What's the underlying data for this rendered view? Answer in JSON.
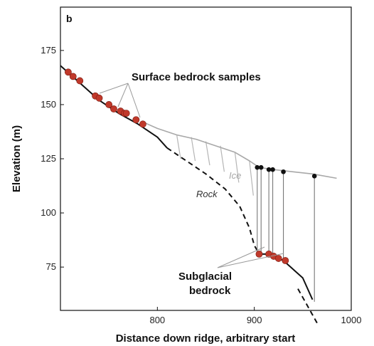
{
  "chart_data": {
    "type": "line",
    "panel_label": "b",
    "xlabel": "Distance down ridge, arbitrary start",
    "ylabel": "Elevation (m)",
    "xlim": [
      700,
      1000
    ],
    "ylim": [
      55,
      195
    ],
    "xticks": [
      800,
      900,
      1000
    ],
    "yticks": [
      75,
      100,
      125,
      150,
      175
    ],
    "grid": false,
    "series": [
      {
        "name": "Rock",
        "role": "rock-surface-exposed",
        "style": "solid",
        "color": "#111111",
        "x": [
          700,
          720,
          740,
          760,
          780,
          800,
          810
        ],
        "y": [
          168,
          160,
          152,
          146,
          141,
          135,
          130
        ]
      },
      {
        "name": "Rock",
        "role": "rock-surface-buried",
        "style": "dashed",
        "color": "#111111",
        "x": [
          810,
          830,
          850,
          870,
          885,
          895,
          900,
          905
        ],
        "y": [
          130,
          124,
          118,
          111,
          103,
          93,
          85,
          81
        ]
      },
      {
        "name": "Rock",
        "role": "rock-surface-subglacial",
        "style": "solid",
        "color": "#111111",
        "x": [
          905,
          915,
          930,
          950,
          960
        ],
        "y": [
          81,
          81,
          78,
          70,
          60
        ]
      },
      {
        "name": "Rock",
        "role": "rock-surface-extrapolated",
        "style": "dashed",
        "color": "#111111",
        "x": [
          945,
          955,
          965
        ],
        "y": [
          65,
          57,
          49
        ]
      },
      {
        "name": "Ice",
        "role": "ice-surface",
        "style": "solid",
        "color": "#a8a8a8",
        "x": [
          785,
          800,
          820,
          840,
          860,
          880,
          895,
          905,
          920,
          940,
          960,
          985
        ],
        "y": [
          142,
          139,
          136,
          134,
          131,
          128,
          124,
          121,
          120,
          119,
          118,
          116
        ]
      }
    ],
    "crevasse_lines": [
      {
        "x": 820,
        "y_top": 136,
        "y_bottom": 125
      },
      {
        "x": 835,
        "y_top": 135,
        "y_bottom": 124
      },
      {
        "x": 850,
        "y_top": 133,
        "y_bottom": 122
      },
      {
        "x": 865,
        "y_top": 131,
        "y_bottom": 119
      },
      {
        "x": 880,
        "y_top": 128,
        "y_bottom": 114
      },
      {
        "x": 895,
        "y_top": 124,
        "y_bottom": 108
      }
    ],
    "boreholes": [
      {
        "x": 903,
        "y_top": 121,
        "y_bottom": 82
      },
      {
        "x": 907,
        "y_top": 121,
        "y_bottom": 82
      },
      {
        "x": 915,
        "y_top": 120,
        "y_bottom": 82
      },
      {
        "x": 919,
        "y_top": 120,
        "y_bottom": 80
      },
      {
        "x": 930,
        "y_top": 119,
        "y_bottom": 78
      },
      {
        "x": 962,
        "y_top": 117,
        "y_bottom": 59
      }
    ],
    "surface_samples": {
      "name": "Surface bedrock samples",
      "color": "#c0392b",
      "x": [
        708,
        713,
        720,
        736,
        740,
        750,
        755,
        762,
        766,
        768,
        778,
        785
      ],
      "y": [
        165,
        163,
        161,
        154,
        153,
        150,
        148,
        147,
        146,
        146,
        143,
        141
      ]
    },
    "subglacial_samples": {
      "name": "Subglacial bedrock",
      "color": "#c0392b",
      "x": [
        905,
        915,
        920,
        925,
        932
      ],
      "y": [
        81,
        81,
        80,
        79,
        78
      ]
    },
    "annotations": [
      {
        "text": "Surface bedrock samples"
      },
      {
        "text_line1": "Subglacial",
        "text_line2": "bedrock"
      },
      {
        "text": "Ice",
        "color": "#a8a8a8"
      },
      {
        "text": "Rock",
        "color": "#333333"
      }
    ]
  }
}
